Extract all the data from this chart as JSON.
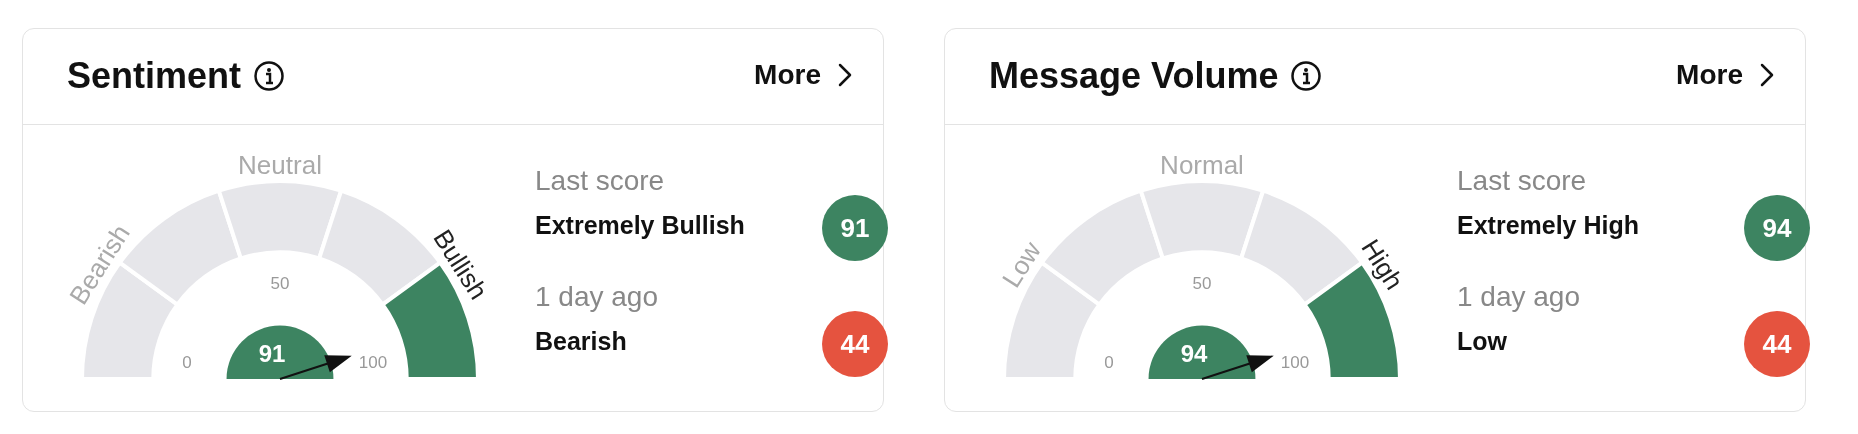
{
  "chart_data": [
    {
      "type": "donut",
      "title": "Sentiment",
      "categories": [
        "Bearish",
        null,
        "Neutral",
        null,
        "Bullish"
      ],
      "values": [
        20,
        20,
        20,
        20,
        20
      ],
      "colors": [
        "#e6e6ea",
        "#e6e6ea",
        "#e6e6ea",
        "#e6e6ea",
        "#3d8461"
      ],
      "needle": "Bullish",
      "annotations": [
        "91",
        "More",
        "Last score",
        "Extremely Bullish",
        "91",
        "1 day ago",
        "Bearish",
        "44",
        "0",
        "50",
        "100"
      ]
    },
    {
      "type": "donut",
      "title": "Message Volume",
      "categories": [
        "Low",
        null,
        "Normal",
        null,
        "High"
      ],
      "values": [
        20,
        20,
        20,
        20,
        20
      ],
      "colors": [
        "#e6e6ea",
        "#e6e6ea",
        "#e6e6ea",
        "#e6e6ea",
        "#3d8461"
      ],
      "needle": "High",
      "annotations": [
        "94",
        "More",
        "Last score",
        "Extremely High",
        "94",
        "1 day ago",
        "Low",
        "44",
        "0",
        "50",
        "100"
      ]
    }
  ]
}
